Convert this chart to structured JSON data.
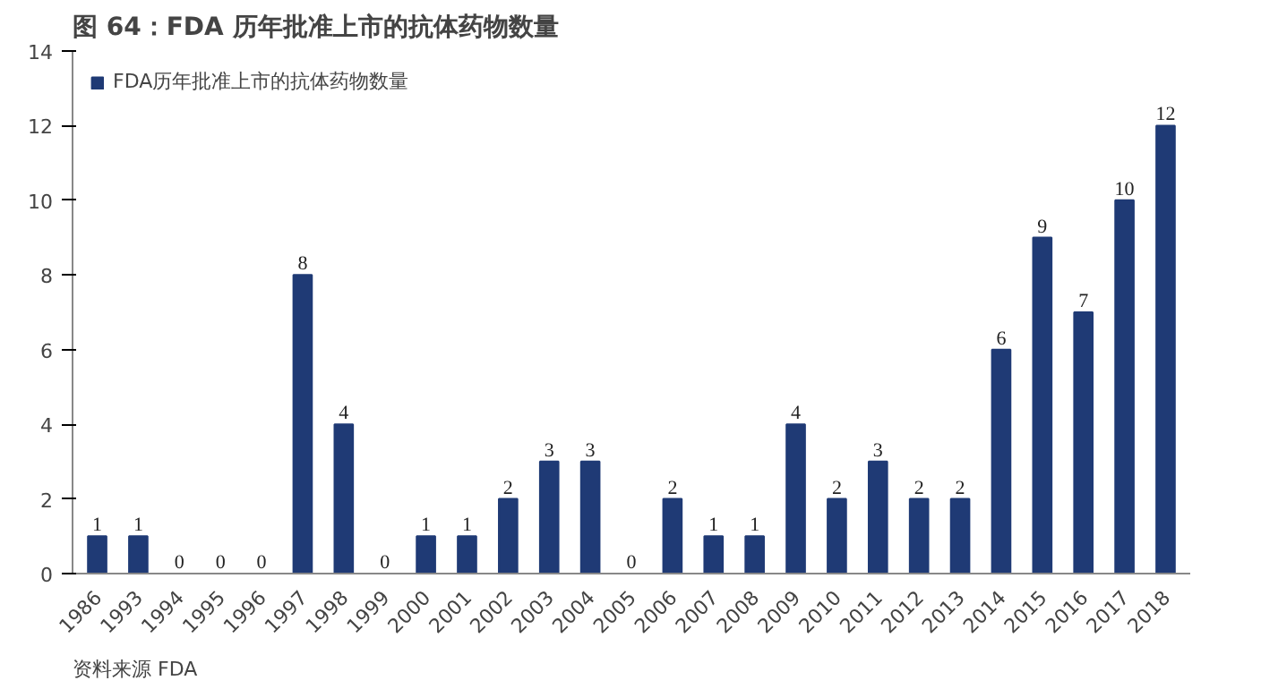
{
  "chart_data": {
    "type": "bar",
    "title": "图 64：FDA 历年批准上市的抗体药物数量",
    "categories": [
      "1986",
      "1993",
      "1994",
      "1995",
      "1996",
      "1997",
      "1998",
      "1999",
      "2000",
      "2001",
      "2002",
      "2003",
      "2004",
      "2005",
      "2006",
      "2007",
      "2008",
      "2009",
      "2010",
      "2011",
      "2012",
      "2013",
      "2014",
      "2015",
      "2016",
      "2017",
      "2018"
    ],
    "series": [
      {
        "name": "FDA历年批准上市的抗体药物数量",
        "color": "#1f3a75",
        "values": [
          1,
          1,
          0,
          0,
          0,
          8,
          4,
          0,
          1,
          1,
          2,
          3,
          3,
          0,
          2,
          1,
          1,
          4,
          2,
          3,
          2,
          2,
          6,
          9,
          7,
          10,
          12
        ]
      }
    ],
    "ylim": [
      0,
      14
    ],
    "yticks": [
      0,
      2,
      4,
      6,
      8,
      10,
      12,
      14
    ],
    "data_labels": true,
    "legend": "top left",
    "grid": false,
    "annotations": [
      "资料来源 FDA"
    ]
  }
}
